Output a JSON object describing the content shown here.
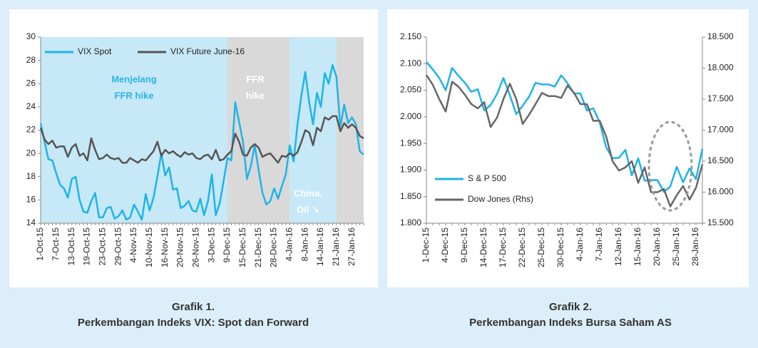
{
  "chart_data": [
    {
      "type": "line",
      "caption": "Grafik 1.",
      "subtitle": "Perkembangan Indeks VIX: Spot dan Forward",
      "categories": [
        "1-Oct-15",
        null,
        null,
        null,
        "7-Oct-15",
        null,
        null,
        null,
        "13-Oct-15",
        null,
        null,
        null,
        "19-Oct-15",
        null,
        null,
        null,
        "23-Oct-15",
        null,
        null,
        null,
        "29-Oct-15",
        null,
        null,
        null,
        "4-Nov-15",
        null,
        null,
        null,
        "10-Nov-15",
        null,
        null,
        null,
        "16-Nov-15",
        null,
        null,
        null,
        "20-Nov-15",
        null,
        null,
        null,
        "26-Nov-15",
        null,
        null,
        null,
        "3-Dec-15",
        null,
        null,
        null,
        "9-Dec-15",
        null,
        null,
        null,
        "15-Dec-15",
        null,
        null,
        null,
        "21-Dec-15",
        null,
        null,
        null,
        "28-Dec-15",
        null,
        null,
        null,
        "4-Jan-16",
        null,
        null,
        null,
        "8-Jan-16",
        null,
        null,
        null,
        "14-Jan-16",
        null,
        null,
        null,
        "21-Jan-16",
        null,
        null,
        null,
        "27-Jan-16",
        null,
        null,
        null
      ],
      "series": [
        {
          "name": "VIX Spot",
          "color": "#1eb4e8",
          "values": [
            22.6,
            21.0,
            19.5,
            19.4,
            18.3,
            17.3,
            17.0,
            16.2,
            17.8,
            18.0,
            16.0,
            15.0,
            14.9,
            15.9,
            16.6,
            14.5,
            14.5,
            15.3,
            15.4,
            14.4,
            14.6,
            15.1,
            14.3,
            14.5,
            15.6,
            15.0,
            14.3,
            16.5,
            15.1,
            16.2,
            18.0,
            20.0,
            18.1,
            18.8,
            16.9,
            17.0,
            15.3,
            15.5,
            15.9,
            15.1,
            15.0,
            16.1,
            14.7,
            15.9,
            18.2,
            14.7,
            15.7,
            17.6,
            19.6,
            19.4,
            24.4,
            22.7,
            21.0,
            17.8,
            18.9,
            20.7,
            18.6,
            16.6,
            15.6,
            15.9,
            17.0,
            16.1,
            17.2,
            18.2,
            20.7,
            19.3,
            22.5,
            25.0,
            27.0,
            24.4,
            22.5,
            25.2,
            24.0,
            26.9,
            26.0,
            27.6,
            26.6,
            22.3,
            24.2,
            22.6,
            23.1,
            22.5,
            20.2,
            19.9
          ]
        },
        {
          "name": "VIX Future June-16",
          "color": "#555555",
          "values": [
            22.2,
            21.2,
            20.8,
            21.1,
            20.5,
            20.6,
            20.6,
            19.7,
            20.5,
            20.8,
            19.8,
            20.0,
            19.4,
            21.3,
            20.3,
            19.5,
            19.6,
            19.9,
            19.6,
            19.5,
            19.6,
            19.2,
            19.2,
            19.6,
            19.4,
            19.2,
            19.5,
            19.4,
            19.8,
            20.2,
            21.0,
            19.8,
            20.3,
            20.0,
            20.2,
            19.9,
            19.7,
            20.1,
            19.9,
            20.0,
            19.6,
            19.5,
            19.8,
            19.9,
            19.5,
            20.3,
            19.4,
            19.5,
            19.9,
            20.2,
            21.7,
            21.0,
            19.9,
            19.8,
            20.5,
            20.8,
            20.5,
            19.7,
            19.9,
            20.0,
            19.6,
            19.2,
            19.8,
            19.7,
            20.0,
            19.8,
            20.1,
            21.0,
            22.0,
            21.8,
            20.7,
            22.2,
            21.9,
            23.1,
            22.9,
            23.2,
            23.2,
            21.9,
            22.6,
            22.2,
            22.5,
            22.2,
            21.5,
            21.3
          ]
        }
      ],
      "regions": [
        {
          "from": "1-Oct-15",
          "to": "9-Dec-15",
          "color": "#c6e8f7"
        },
        {
          "from": "9-Dec-15",
          "to": "4-Jan-16",
          "color": "#d9d9d9"
        },
        {
          "from": "4-Jan-16",
          "to": "21-Jan-16",
          "color": "#c6e8f7"
        },
        {
          "from": "21-Jan-16",
          "color": "#d9d9d9"
        }
      ],
      "annotations": [
        {
          "text": [
            "Menjelang",
            "FFR hike"
          ],
          "color": "#2ab4e6"
        },
        {
          "text": [
            "FFR",
            "hike"
          ],
          "color": "#ffffff"
        },
        {
          "text": [
            "China,",
            "Oil ↘"
          ],
          "color": "#ffffff"
        }
      ],
      "ylim": [
        14,
        30
      ],
      "yticks": [
        14,
        16,
        18,
        20,
        22,
        24,
        26,
        28,
        30
      ],
      "legend": "top-left"
    },
    {
      "type": "line",
      "caption": "Grafik 2.",
      "subtitle": "Perkembangan Indeks Bursa Saham AS",
      "categories": [
        "1-Dec-15",
        null,
        null,
        "4-Dec-15",
        null,
        null,
        "9-Dec-15",
        null,
        null,
        "14-Dec-15",
        null,
        null,
        "17-Dec-15",
        null,
        null,
        "22-Dec-15",
        null,
        null,
        "25-Dec-15",
        null,
        null,
        "30-Dec-15",
        null,
        null,
        "4-Jan-16",
        null,
        null,
        "7-Jan-16",
        null,
        null,
        "12-Jan-16",
        null,
        null,
        "15-Jan-16",
        null,
        null,
        "20-Jan-16",
        null,
        null,
        "25-Jan-16",
        null,
        null,
        "28-Jan-16",
        null
      ],
      "series": [
        {
          "name": "S & P 500",
          "color": "#1eb4e8",
          "values": [
            2103,
            2089,
            2073,
            2050,
            2092,
            2077,
            2064,
            2047,
            2052,
            2012,
            2022,
            2043,
            2073,
            2041,
            2005,
            2021,
            2038,
            2064,
            2061,
            2061,
            2057,
            2078,
            2063,
            2044,
            2044,
            2012,
            2016,
            1990,
            1943,
            1922,
            1923,
            1938,
            1890,
            1922,
            1880,
            1881,
            1881,
            1859,
            1869,
            1906,
            1877,
            1903,
            1883,
            1940
          ]
        },
        {
          "name": "Dow Jones (Rhs)",
          "color": "#666666",
          "axis": "y2",
          "values": [
            17888,
            17730,
            17500,
            17300,
            17780,
            17700,
            17570,
            17420,
            17350,
            17450,
            17050,
            17200,
            17500,
            17750,
            17500,
            17100,
            17250,
            17420,
            17600,
            17550,
            17550,
            17520,
            17720,
            17600,
            17420,
            17420,
            17150,
            17150,
            16900,
            16500,
            16350,
            16400,
            16500,
            16150,
            16400,
            16000,
            16000,
            16050,
            15770,
            15950,
            16100,
            15880,
            16070,
            16450
          ]
        }
      ],
      "ylim": [
        1800,
        2150
      ],
      "yticks": [
        {
          "value": 1800,
          "label": "1.800"
        },
        {
          "value": 1850,
          "label": "1.850"
        },
        {
          "value": 1900,
          "label": "1.900"
        },
        {
          "value": 1950,
          "label": "1.950"
        },
        {
          "value": 2000,
          "label": "2.000"
        },
        {
          "value": 2050,
          "label": "2.050"
        },
        {
          "value": 2100,
          "label": "2.100"
        },
        {
          "value": 2150,
          "label": "2.150"
        }
      ],
      "y2lim": [
        15500,
        18500
      ],
      "y2ticks": [
        {
          "value": 15500,
          "label": "15.500"
        },
        {
          "value": 16000,
          "label": "16.000"
        },
        {
          "value": 16500,
          "label": "16.500"
        },
        {
          "value": 17000,
          "label": "17.000"
        },
        {
          "value": 17500,
          "label": "17.500"
        },
        {
          "value": 18000,
          "label": "18.000"
        },
        {
          "value": 18500,
          "label": "18.500"
        }
      ],
      "legend": "bottom-left"
    }
  ]
}
